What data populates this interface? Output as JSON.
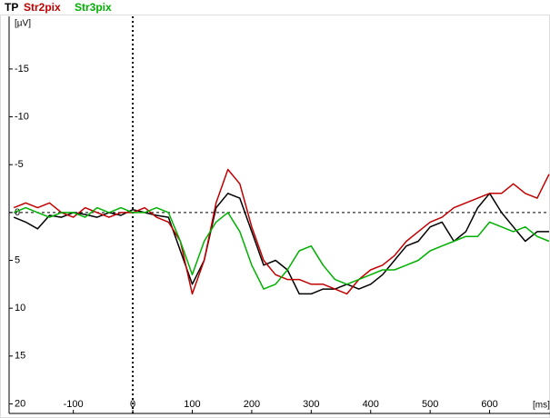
{
  "chart_data": {
    "type": "line",
    "y_label": "[µV]",
    "x_label": "[ms]",
    "x": [
      -200,
      -180,
      -160,
      -140,
      -120,
      -100,
      -80,
      -60,
      -40,
      -20,
      0,
      20,
      40,
      60,
      80,
      100,
      120,
      140,
      160,
      180,
      200,
      220,
      240,
      260,
      280,
      300,
      320,
      340,
      360,
      380,
      400,
      420,
      440,
      460,
      480,
      500,
      520,
      540,
      560,
      580,
      600,
      620,
      640,
      660,
      680,
      700
    ],
    "series": [
      {
        "name": "TP",
        "color": "#000000",
        "values": [
          0.5,
          1,
          1.7,
          0.3,
          0.5,
          0,
          0.2,
          0.5,
          0,
          0.3,
          -0.3,
          0,
          0.3,
          0.5,
          4,
          7.5,
          5,
          -0.5,
          -2,
          -1.5,
          2,
          5.5,
          5,
          6,
          8.5,
          8.5,
          8,
          8,
          7.5,
          8,
          7.5,
          6.5,
          5,
          3.5,
          3,
          1.5,
          1,
          3,
          2,
          -0.5,
          -2,
          0,
          1.5,
          3,
          2,
          2
        ]
      },
      {
        "name": "Str2pix",
        "color": "#c00000",
        "values": [
          -0.5,
          -1,
          -0.5,
          -1,
          0,
          0.5,
          -0.5,
          0,
          0.5,
          0,
          0,
          -0.5,
          0.5,
          1,
          3,
          8.5,
          5,
          -1,
          -4.5,
          -3,
          1.5,
          5,
          6.5,
          7,
          7,
          7.5,
          7.5,
          8,
          8.5,
          7,
          6,
          5.5,
          4.5,
          3,
          2,
          1,
          0.5,
          -0.5,
          -1,
          -1.5,
          -2,
          -2,
          -3,
          -2,
          -1.5,
          -4
        ]
      },
      {
        "name": "Str3pix",
        "color": "#00b000",
        "values": [
          0,
          -0.5,
          0,
          0.5,
          0,
          0,
          0.5,
          -0.5,
          0,
          -0.5,
          0,
          0,
          -0.5,
          0,
          3,
          6.5,
          3,
          1,
          0,
          2,
          5.5,
          8,
          7.5,
          6,
          4,
          3.5,
          5.5,
          7,
          7.5,
          7,
          6.5,
          6,
          6,
          5.5,
          5,
          4,
          3.5,
          3,
          2.5,
          2.5,
          1,
          1.5,
          2,
          1.5,
          2.5,
          3
        ]
      }
    ],
    "xlim": [
      -208,
      700
    ],
    "ylim": [
      21,
      -20.5
    ],
    "xticks": [
      -100,
      0,
      100,
      200,
      300,
      400,
      500,
      600
    ],
    "yticks": [
      -15,
      -10,
      -5,
      0,
      5,
      10,
      15,
      20
    ],
    "zero_lines": true
  }
}
